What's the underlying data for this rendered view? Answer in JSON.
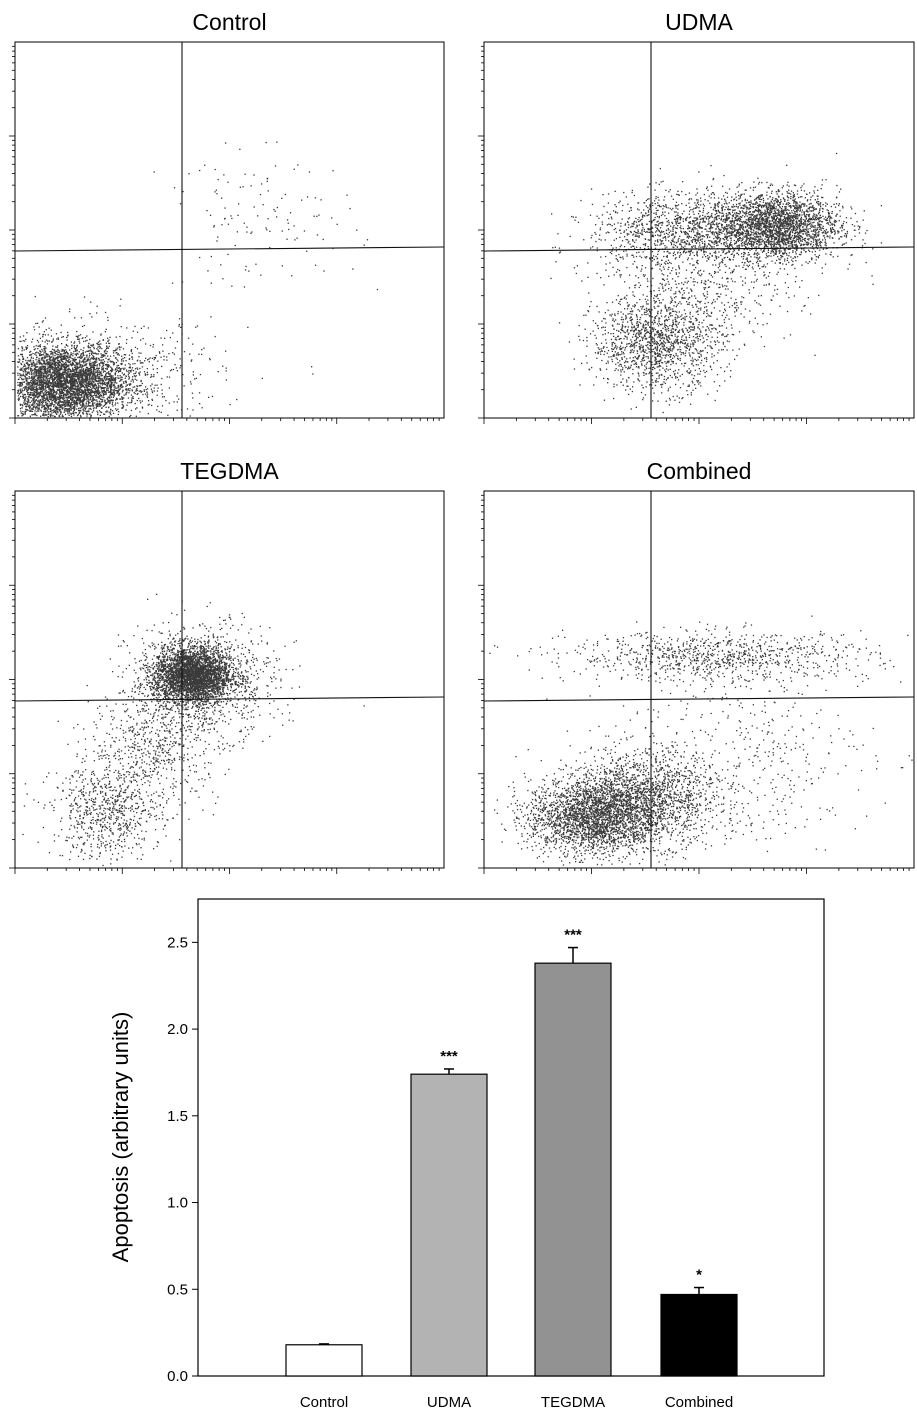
{
  "chart_data": [
    {
      "type": "scatter",
      "title": "Control",
      "populations": [
        {
          "cx": 0.4,
          "cy": 0.35,
          "sx": 0.28,
          "sy": 0.22,
          "n": 2600
        },
        {
          "cx": 0.55,
          "cy": 0.4,
          "sx": 0.3,
          "sy": 0.18,
          "n": 1600
        },
        {
          "cx": 0.8,
          "cy": 0.45,
          "sx": 0.55,
          "sy": 0.3,
          "n": 700
        },
        {
          "cx": 2.3,
          "cy": 2.1,
          "sx": 0.45,
          "sy": 0.35,
          "n": 120
        }
      ]
    },
    {
      "type": "scatter",
      "title": "UDMA",
      "populations": [
        {
          "cx": 2.7,
          "cy": 2.05,
          "sx": 0.3,
          "sy": 0.18,
          "n": 2600
        },
        {
          "cx": 1.8,
          "cy": 2.0,
          "sx": 0.4,
          "sy": 0.2,
          "n": 1000
        },
        {
          "cx": 1.6,
          "cy": 0.8,
          "sx": 0.3,
          "sy": 0.25,
          "n": 1300
        },
        {
          "cx": 2.0,
          "cy": 1.4,
          "sx": 0.45,
          "sy": 0.35,
          "n": 600
        }
      ]
    },
    {
      "type": "scatter",
      "title": "TEGDMA",
      "populations": [
        {
          "cx": 1.65,
          "cy": 2.05,
          "sx": 0.18,
          "sy": 0.15,
          "n": 3200
        },
        {
          "cx": 1.75,
          "cy": 2.0,
          "sx": 0.35,
          "sy": 0.3,
          "n": 900
        },
        {
          "cx": 1.3,
          "cy": 1.3,
          "sx": 0.3,
          "sy": 0.3,
          "n": 600
        },
        {
          "cx": 0.85,
          "cy": 0.6,
          "sx": 0.25,
          "sy": 0.25,
          "n": 700
        }
      ]
    },
    {
      "type": "scatter",
      "title": "Combined",
      "populations": [
        {
          "cx": 1.0,
          "cy": 0.55,
          "sx": 0.3,
          "sy": 0.2,
          "n": 2400
        },
        {
          "cx": 1.5,
          "cy": 0.75,
          "sx": 0.35,
          "sy": 0.25,
          "n": 1600
        },
        {
          "cx": 2.2,
          "cy": 2.25,
          "sx": 0.7,
          "sy": 0.13,
          "n": 900
        },
        {
          "cx": 2.4,
          "cy": 1.2,
          "sx": 0.6,
          "sy": 0.5,
          "n": 400
        }
      ]
    },
    {
      "type": "bar",
      "categories": [
        "Control",
        "UDMA",
        "TEGDMA",
        "Combined"
      ],
      "values": [
        0.18,
        1.74,
        2.38,
        0.47
      ],
      "errors": [
        0.005,
        0.03,
        0.09,
        0.04
      ],
      "significance": [
        "",
        "***",
        "***",
        "*"
      ],
      "colors": [
        "#ffffff",
        "#b3b3b3",
        "#929292",
        "#000000"
      ],
      "ylabel": "Apoptosis (arbitrary units)",
      "ylim": [
        0,
        2.75
      ],
      "yticks": [
        "0.0",
        "0.5",
        "1.0",
        "1.5",
        "2.0",
        "2.5"
      ]
    }
  ]
}
